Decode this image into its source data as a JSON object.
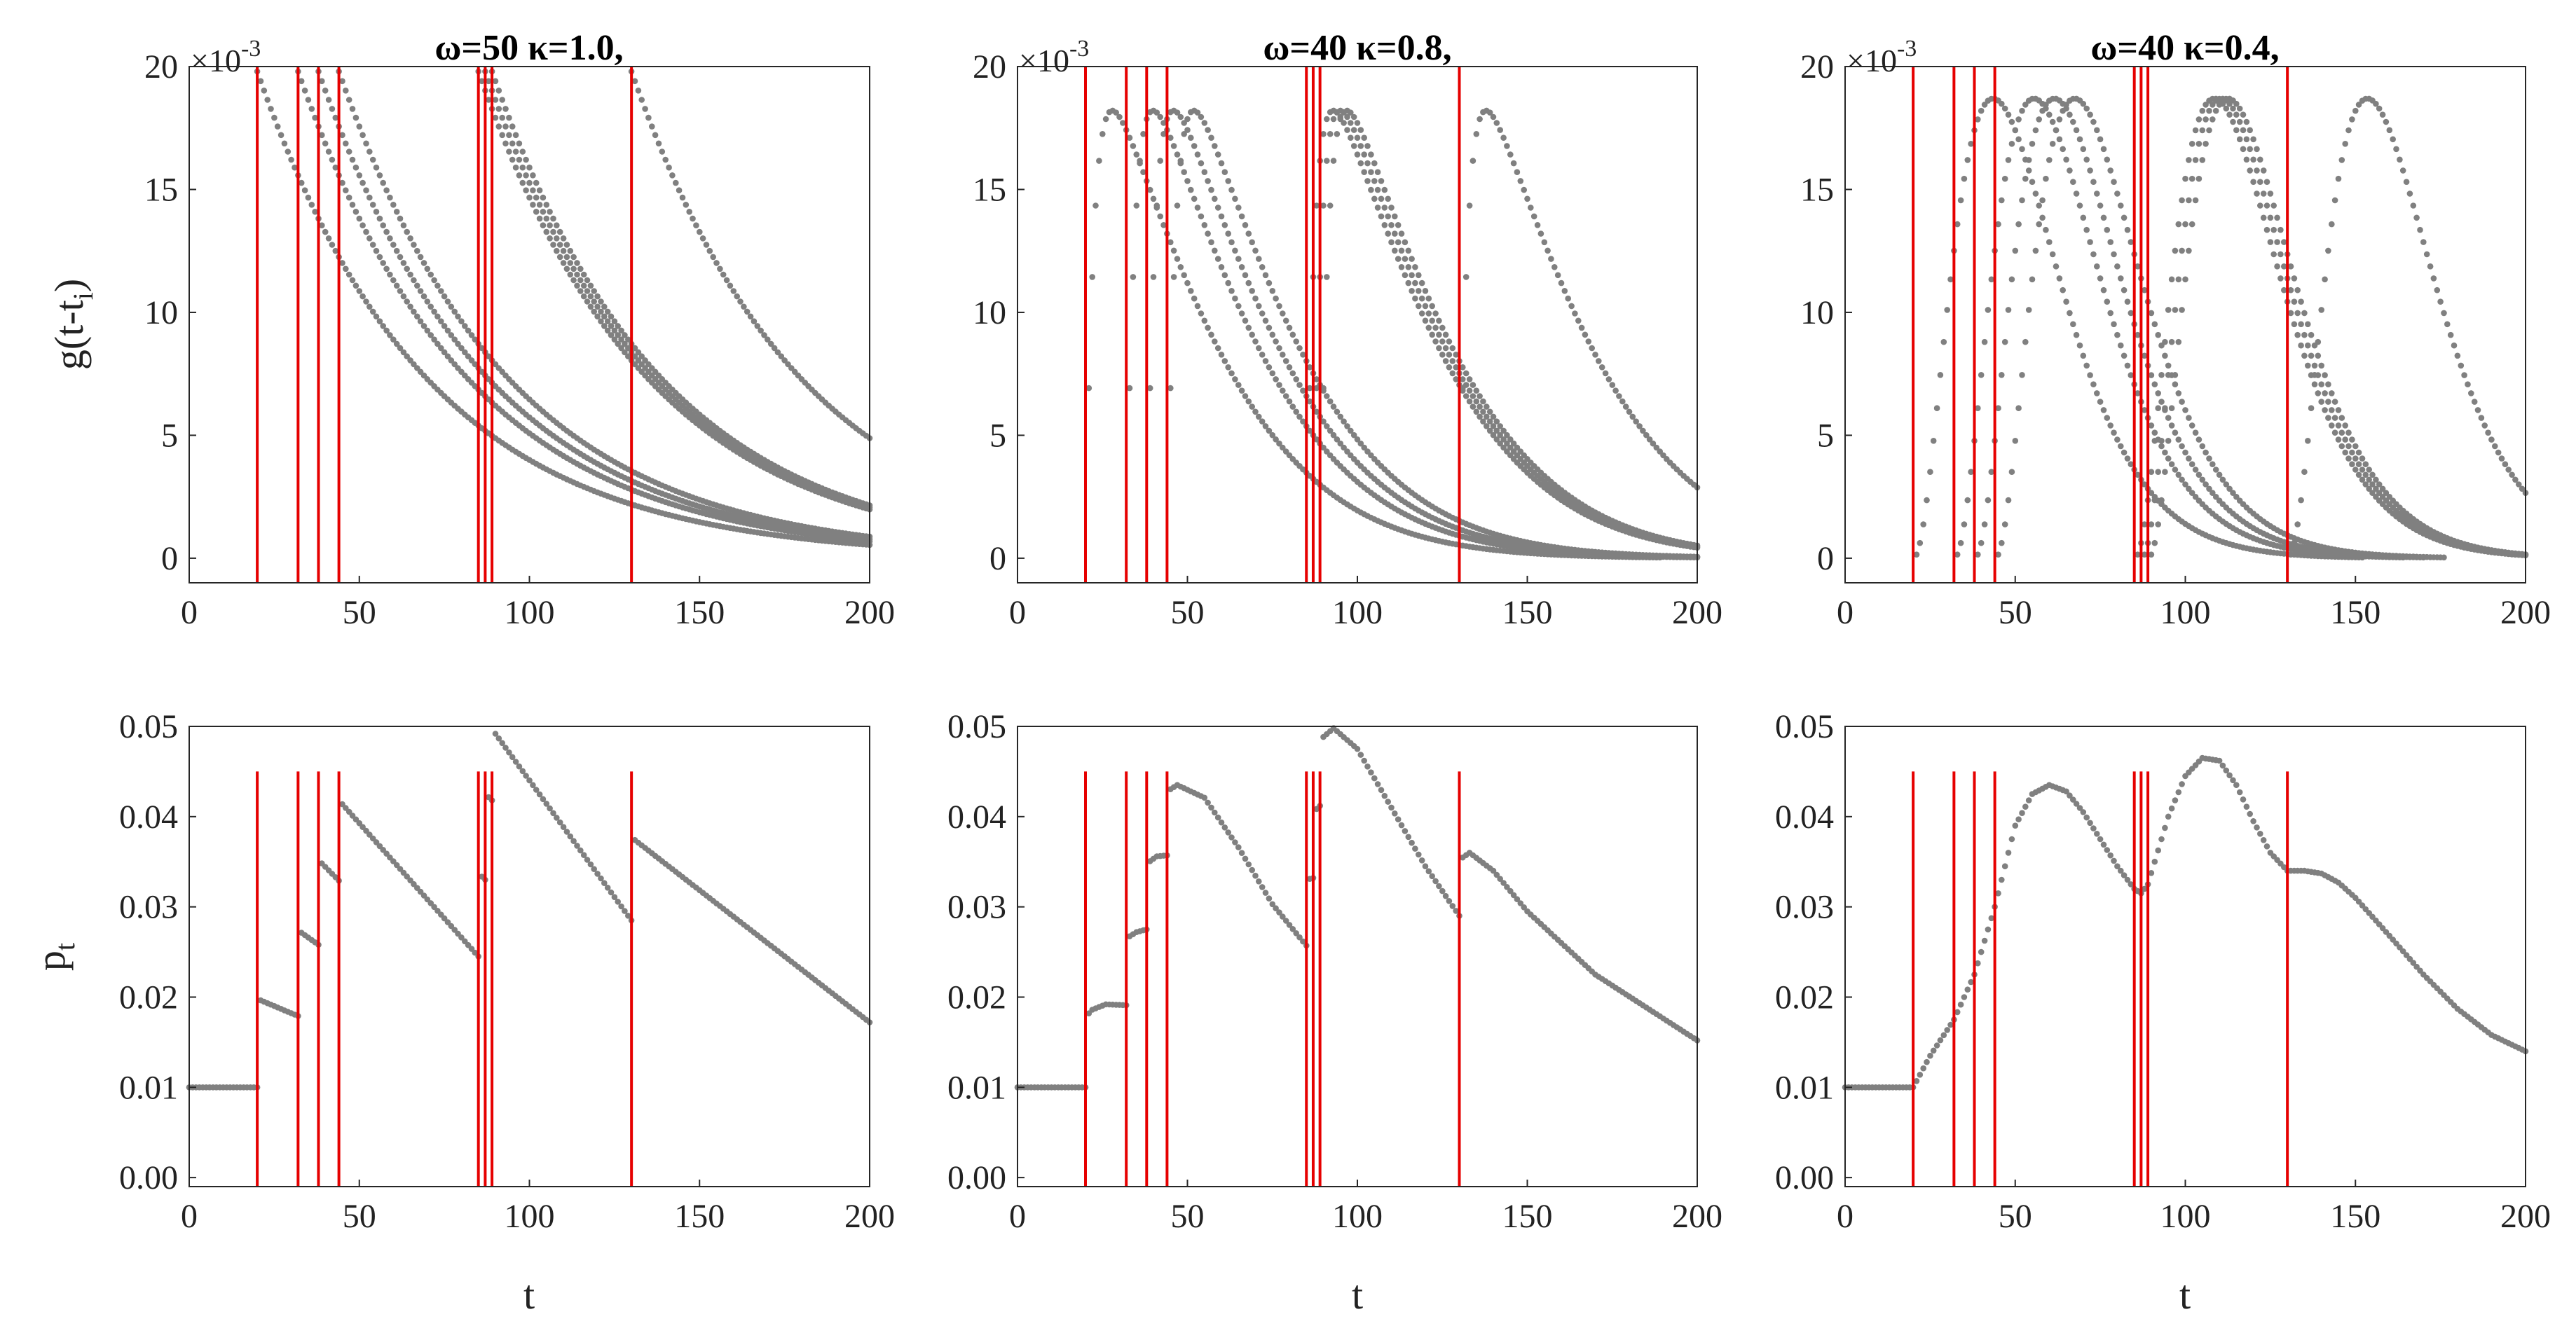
{
  "colors": {
    "points": "#808080",
    "events": "#e60000",
    "axes": "#262626",
    "background": "#ffffff"
  },
  "event_times": [
    20,
    32,
    38,
    44,
    85,
    87,
    89,
    130
  ],
  "chart_data": [
    {
      "id": "g-1",
      "type": "scatter",
      "row": 0,
      "col": 0,
      "title": "ω=50 κ=1.0,",
      "xlabel": "",
      "ylabel": "g(t-t_i)",
      "ylabel_main": "g(t-t",
      "ylabel_sub": "i",
      "ylabel_close": ")",
      "xlim": [
        0,
        200
      ],
      "ylim": [
        -1,
        20
      ],
      "xticks": [
        0,
        50,
        100,
        150,
        200
      ],
      "yticks": [
        0,
        5,
        10,
        15,
        20
      ],
      "ytick_labels": [
        "0",
        "5",
        "10",
        "15",
        "20"
      ],
      "multiplier": "×10",
      "multiplier_exp": "-3",
      "kernel": "exp",
      "kappa": 1.0,
      "omega": 50,
      "peak": 19.8,
      "kernel_tmax": 200,
      "events": [
        20,
        32,
        38,
        44,
        85,
        87,
        89,
        130
      ],
      "event_line_top": 20
    },
    {
      "id": "g-2",
      "type": "scatter",
      "row": 0,
      "col": 1,
      "title": "ω=40 κ=0.8,",
      "xlabel": "",
      "ylabel": "",
      "xlim": [
        0,
        200
      ],
      "ylim": [
        -1,
        20
      ],
      "xticks": [
        0,
        50,
        100,
        150,
        200
      ],
      "yticks": [
        0,
        5,
        10,
        15,
        20
      ],
      "ytick_labels": [
        "0",
        "5",
        "10",
        "15",
        "20"
      ],
      "multiplier": "×10",
      "multiplier_exp": "-3",
      "kernel": "weibull",
      "kappa": 0.8,
      "omega": 40,
      "peak": 18.9,
      "kernel_tmax": 200,
      "events": [
        20,
        32,
        38,
        44,
        85,
        87,
        89,
        130
      ],
      "event_line_top": 20
    },
    {
      "id": "g-3",
      "type": "scatter",
      "row": 0,
      "col": 2,
      "title": "ω=40 κ=0.4,",
      "xlabel": "",
      "ylabel": "",
      "xlim": [
        0,
        200
      ],
      "ylim": [
        -1,
        20
      ],
      "xticks": [
        0,
        50,
        100,
        150,
        200
      ],
      "yticks": [
        0,
        5,
        10,
        15,
        20
      ],
      "ytick_labels": [
        "0",
        "5",
        "10",
        "15",
        "20"
      ],
      "multiplier": "×10",
      "multiplier_exp": "-3",
      "kernel": "weibull",
      "kappa": 0.4,
      "omega": 40,
      "peak": 18.7,
      "kernel_tmax": 200,
      "events": [
        20,
        32,
        38,
        44,
        85,
        87,
        89,
        130
      ],
      "event_line_top": 20
    },
    {
      "id": "p-1",
      "type": "scatter",
      "row": 1,
      "col": 0,
      "title": "",
      "xlabel": "t",
      "ylabel": "p_t",
      "ylabel_main": "p",
      "ylabel_sub": "t",
      "ylabel_close": "",
      "xlim": [
        0,
        200
      ],
      "ylim": [
        -0.001,
        0.05
      ],
      "xticks": [
        0,
        50,
        100,
        150,
        200
      ],
      "yticks": [
        0,
        0.01,
        0.02,
        0.03,
        0.04,
        0.05
      ],
      "ytick_labels": [
        "0.00",
        "0.01",
        "0.02",
        "0.03",
        "0.04",
        "0.05"
      ],
      "events": [
        20,
        32,
        38,
        44,
        85,
        87,
        89,
        130
      ],
      "event_line_top": 0.045,
      "x": [
        0,
        20,
        20,
        32,
        32,
        38,
        38,
        44,
        44,
        85,
        85,
        87,
        87,
        89,
        89,
        130,
        130,
        200
      ],
      "y": [
        0.01,
        0.01,
        0.0198,
        0.0179,
        0.0274,
        0.0258,
        0.0352,
        0.0329,
        0.0418,
        0.0245,
        0.0337,
        0.033,
        0.0425,
        0.0418,
        0.0497,
        0.0285,
        0.0377,
        0.0172
      ]
    },
    {
      "id": "p-2",
      "type": "scatter",
      "row": 1,
      "col": 1,
      "title": "",
      "xlabel": "t",
      "ylabel": "",
      "xlim": [
        0,
        200
      ],
      "ylim": [
        -0.001,
        0.05
      ],
      "xticks": [
        0,
        50,
        100,
        150,
        200
      ],
      "yticks": [
        0,
        0.01,
        0.02,
        0.03,
        0.04,
        0.05
      ],
      "ytick_labels": [
        "0.00",
        "0.01",
        "0.02",
        "0.03",
        "0.04",
        "0.05"
      ],
      "events": [
        20,
        32,
        38,
        44,
        85,
        87,
        89,
        130
      ],
      "event_line_top": 0.045,
      "x": [
        0,
        20,
        20,
        22,
        26,
        32,
        32,
        35,
        38,
        38,
        41,
        44,
        44,
        47,
        55,
        65,
        75,
        85,
        85,
        87,
        87,
        89,
        89,
        93,
        100,
        110,
        120,
        130,
        130,
        133,
        140,
        150,
        170,
        200
      ],
      "y": [
        0.01,
        0.01,
        0.0178,
        0.0186,
        0.0192,
        0.0191,
        0.0265,
        0.0272,
        0.0275,
        0.0348,
        0.0356,
        0.0357,
        0.0428,
        0.0435,
        0.0421,
        0.0366,
        0.0303,
        0.0257,
        0.033,
        0.0332,
        0.0405,
        0.0412,
        0.0485,
        0.0498,
        0.0475,
        0.041,
        0.0345,
        0.029,
        0.0352,
        0.036,
        0.034,
        0.0295,
        0.0225,
        0.0152
      ]
    },
    {
      "id": "p-3",
      "type": "scatter",
      "row": 1,
      "col": 2,
      "title": "",
      "xlabel": "t",
      "ylabel": "",
      "xlim": [
        0,
        200
      ],
      "ylim": [
        -0.001,
        0.05
      ],
      "xticks": [
        0,
        50,
        100,
        150,
        200
      ],
      "yticks": [
        0,
        0.01,
        0.02,
        0.03,
        0.04,
        0.05
      ],
      "ytick_labels": [
        "0.00",
        "0.01",
        "0.02",
        "0.03",
        "0.04",
        "0.05"
      ],
      "events": [
        20,
        32,
        38,
        44,
        85,
        87,
        89,
        130
      ],
      "event_line_top": 0.045,
      "x": [
        0,
        20,
        25,
        32,
        38,
        44,
        50,
        55,
        60,
        65,
        70,
        75,
        80,
        85,
        87,
        89,
        95,
        100,
        105,
        110,
        115,
        120,
        125,
        130,
        135,
        140,
        145,
        150,
        160,
        170,
        180,
        190,
        200
      ],
      "y": [
        0.01,
        0.01,
        0.0135,
        0.0175,
        0.0225,
        0.03,
        0.039,
        0.0425,
        0.0435,
        0.0428,
        0.0405,
        0.0375,
        0.0345,
        0.032,
        0.0315,
        0.0325,
        0.04,
        0.0445,
        0.0465,
        0.0462,
        0.0435,
        0.0395,
        0.036,
        0.034,
        0.034,
        0.0337,
        0.0327,
        0.031,
        0.0268,
        0.0225,
        0.0187,
        0.0158,
        0.014
      ]
    }
  ]
}
